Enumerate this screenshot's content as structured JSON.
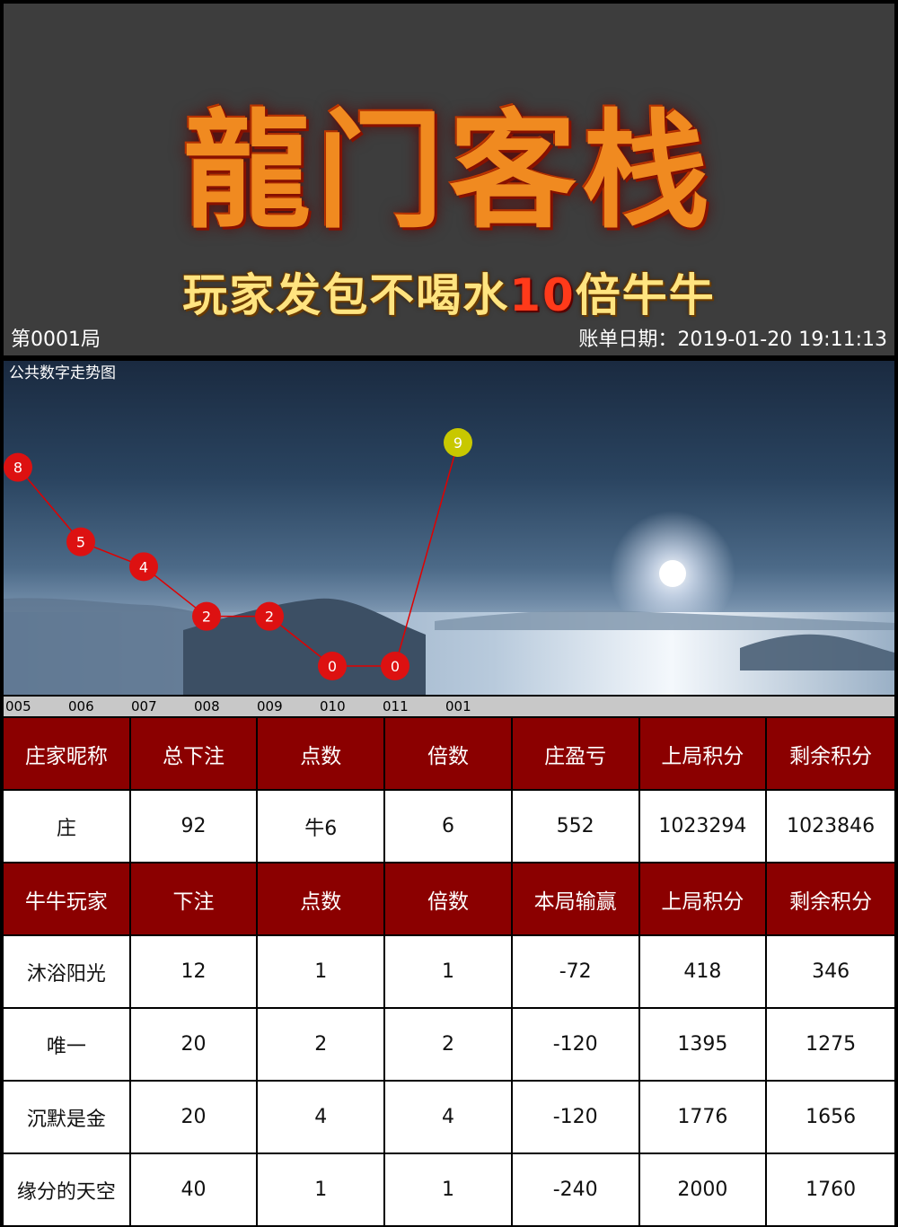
{
  "header": {
    "logo_title": "龍门客栈",
    "logo_sub_pre": "玩家发包不喝水",
    "logo_sub_num": "10",
    "logo_sub_post": "倍牛牛",
    "round": "第0001局",
    "bill_date": "账单日期：2019-01-20 19:11:13"
  },
  "trend": {
    "title": "公共数字走势图",
    "line_color": "#e00000",
    "point_color": "#dd1111",
    "last_point_color": "#c8c800"
  },
  "chart_data": {
    "type": "line",
    "x": [
      "005",
      "006",
      "007",
      "008",
      "009",
      "010",
      "011",
      "001"
    ],
    "values": [
      8,
      5,
      4,
      2,
      2,
      0,
      0,
      9
    ],
    "ylim": [
      0,
      9
    ],
    "grid": false
  },
  "banker_table": {
    "headers": [
      "庄家昵称",
      "总下注",
      "点数",
      "倍数",
      "庄盈亏",
      "上局积分",
      "剩余积分"
    ],
    "row": [
      "庄",
      "92",
      "牛6",
      "6",
      "552",
      "1023294",
      "1023846"
    ]
  },
  "player_table": {
    "headers": [
      "牛牛玩家",
      "下注",
      "点数",
      "倍数",
      "本局输赢",
      "上局积分",
      "剩余积分"
    ],
    "rows": [
      [
        "沐浴阳光",
        "12",
        "1",
        "1",
        "-72",
        "418",
        "346"
      ],
      [
        "唯一",
        "20",
        "2",
        "2",
        "-120",
        "1395",
        "1275"
      ],
      [
        "沉默是金",
        "20",
        "4",
        "4",
        "-120",
        "1776",
        "1656"
      ],
      [
        "缘分的天空",
        "40",
        "1",
        "1",
        "-240",
        "2000",
        "1760"
      ]
    ]
  }
}
